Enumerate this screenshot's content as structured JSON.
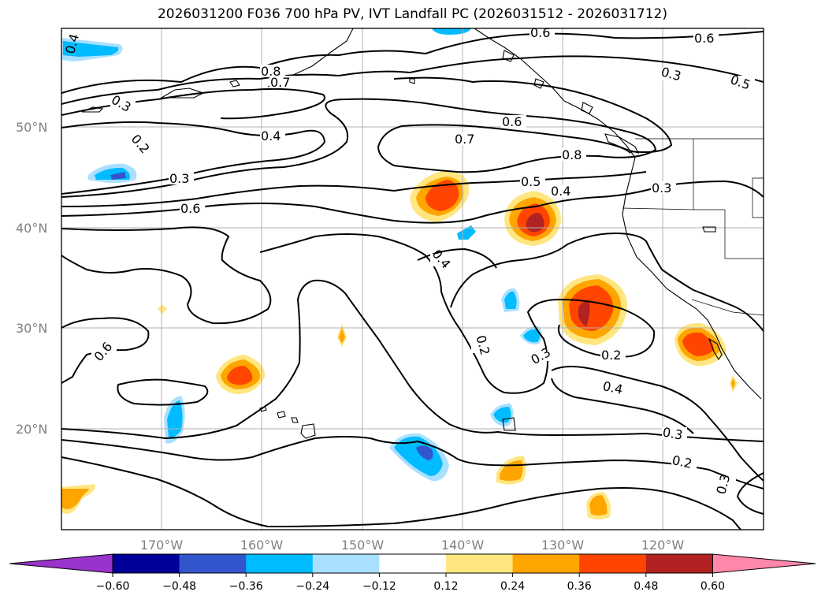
{
  "title": "2026031200 F036 700 hPa PV, IVT Landfall PC (2026031512 - 2026031712)",
  "axes": {
    "lat_labels": [
      "50°N",
      "40°N",
      "30°N",
      "20°N"
    ],
    "lon_labels": [
      "170°W",
      "160°W",
      "150°W",
      "140°W",
      "130°W",
      "120°W"
    ]
  },
  "contour_labels": [
    "0.6",
    "0.6",
    "0.5",
    "0.3",
    "0.8",
    "0.7",
    "0.3",
    "0.4",
    "0.2",
    "0.3",
    "0.6",
    "0.6",
    "0.7",
    "0.8",
    "0.5",
    "0.4",
    "0.3",
    "0.4",
    "0.6",
    "0.2",
    "0.3",
    "0.2",
    "0.4",
    "0.3",
    "0.2",
    "0.3",
    "0.4"
  ],
  "colorbar": {
    "ticks": [
      "−0.60",
      "−0.48",
      "−0.36",
      "−0.24",
      "−0.12",
      "0.12",
      "0.24",
      "0.36",
      "0.48",
      "0.60"
    ],
    "colors": [
      "#9933cc",
      "#000099",
      "#3355cc",
      "#00bbff",
      "#aae0ff",
      "#ffffff",
      "#ffe680",
      "#ffa500",
      "#ff4500",
      "#b22222",
      "#ff88aa"
    ]
  }
}
